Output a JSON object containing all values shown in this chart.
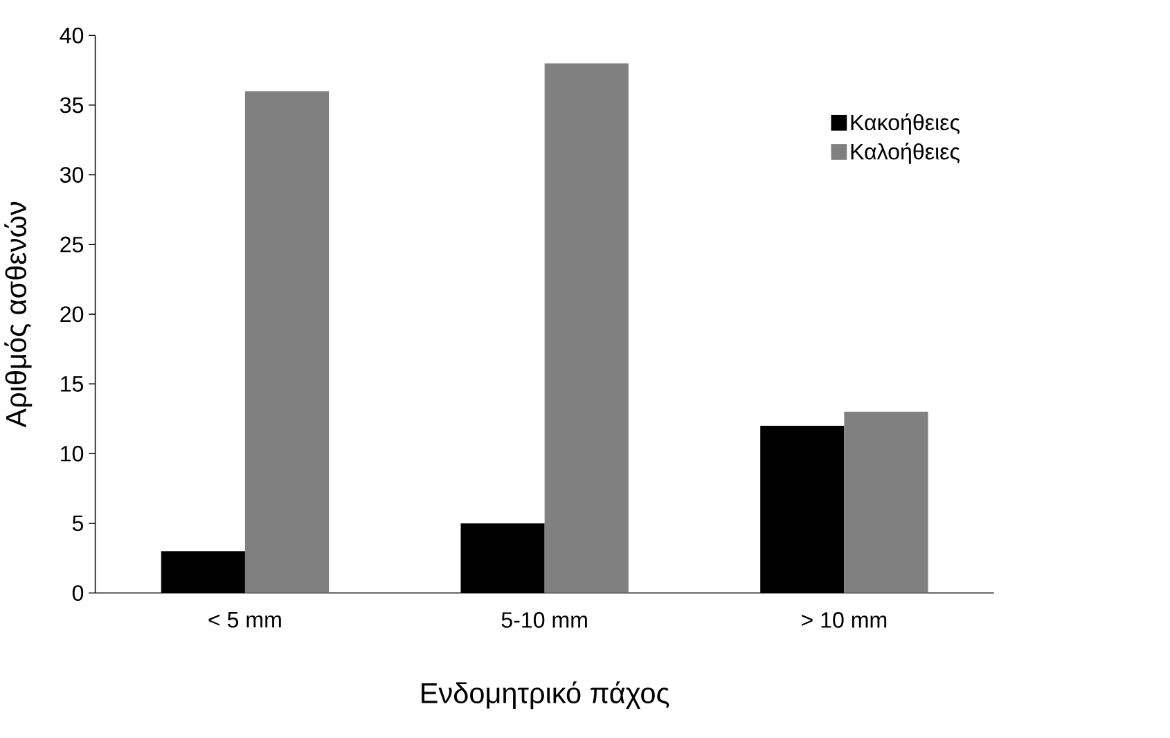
{
  "chart_data": {
    "type": "bar",
    "xlabel": "Ενδομητρικό πάχος",
    "ylabel": "Αριθμός ασθενών",
    "categories": [
      "< 5 mm",
      "5-10 mm",
      "> 10 mm"
    ],
    "series": [
      {
        "name": "Κακοήθειες",
        "color": "#000000",
        "values": [
          3,
          5,
          12
        ]
      },
      {
        "name": "Καλοήθειες",
        "color": "#808080",
        "values": [
          36,
          38,
          13
        ]
      }
    ],
    "ylim": [
      0,
      40
    ],
    "yticks": [
      0,
      5,
      10,
      15,
      20,
      25,
      30,
      35,
      40
    ],
    "legend": "top right",
    "grid": false
  }
}
